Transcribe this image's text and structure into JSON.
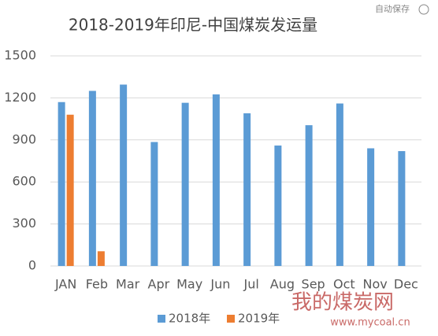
{
  "autosave": "自动保存",
  "watermark": {
    "name": "我的煤炭网",
    "url": "www.mycoal.cn"
  },
  "chart_data": {
    "type": "bar",
    "title": "2018-2019年印尼-中国煤炭发运量",
    "categories": [
      "JAN",
      "Feb",
      "Mar",
      "Apr",
      "May",
      "Jun",
      "Jul",
      "Aug",
      "Sep",
      "Oct",
      "Nov",
      "Dec"
    ],
    "series": [
      {
        "name": "2018年",
        "color": "#5b9bd5",
        "values": [
          1170,
          1250,
          1295,
          885,
          1165,
          1225,
          1090,
          860,
          1005,
          1160,
          840,
          820
        ]
      },
      {
        "name": "2019年",
        "color": "#ed7d31",
        "values": [
          1080,
          105,
          null,
          null,
          null,
          null,
          null,
          null,
          null,
          null,
          null,
          null
        ]
      }
    ],
    "ylim": [
      0,
      1500
    ],
    "yticks": [
      0,
      300,
      600,
      900,
      1200,
      1500
    ],
    "grid": true,
    "legend": "bottom"
  }
}
